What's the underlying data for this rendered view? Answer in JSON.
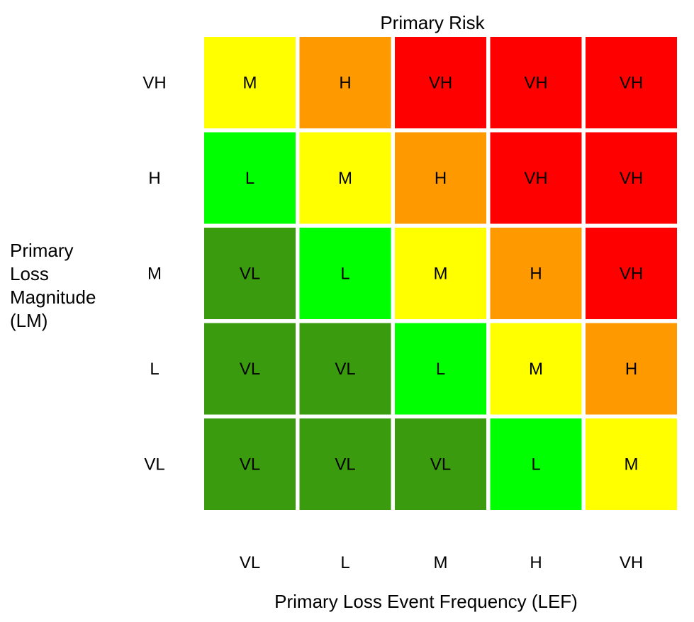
{
  "chart_data": {
    "type": "heatmap",
    "title": "Primary Risk",
    "xlabel": "Primary Loss Event Frequency (LEF)",
    "ylabel_lines": [
      "Primary",
      "Loss",
      "Magnitude",
      "(LM)"
    ],
    "x_categories": [
      "VL",
      "L",
      "M",
      "H",
      "VH"
    ],
    "y_categories": [
      "VH",
      "H",
      "M",
      "L",
      "VL"
    ],
    "cells": [
      [
        "M",
        "H",
        "VH",
        "VH",
        "VH"
      ],
      [
        "L",
        "M",
        "H",
        "VH",
        "VH"
      ],
      [
        "VL",
        "L",
        "M",
        "H",
        "VH"
      ],
      [
        "VL",
        "VL",
        "L",
        "M",
        "H"
      ],
      [
        "VL",
        "VL",
        "VL",
        "L",
        "M"
      ]
    ],
    "colors": {
      "VL": "#3a9b0f",
      "L": "#00ff00",
      "M": "#ffff00",
      "H": "#ff9900",
      "VH": "#ff0000"
    }
  }
}
